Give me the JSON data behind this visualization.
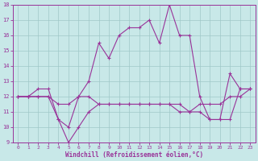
{
  "xlabel": "Windchill (Refroidissement éolien,°C)",
  "xlim": [
    -0.5,
    23.5
  ],
  "ylim": [
    9,
    18
  ],
  "xticks": [
    0,
    1,
    2,
    3,
    4,
    5,
    6,
    7,
    8,
    9,
    10,
    11,
    12,
    13,
    14,
    15,
    16,
    17,
    18,
    19,
    20,
    21,
    22,
    23
  ],
  "yticks": [
    9,
    10,
    11,
    12,
    13,
    14,
    15,
    16,
    17,
    18
  ],
  "bg_color": "#c8e8e8",
  "line_color": "#993399",
  "line1_x": [
    0,
    1,
    2,
    3,
    4,
    5,
    6,
    7,
    8,
    9,
    10,
    11,
    12,
    13,
    14,
    15,
    16,
    17,
    18,
    19,
    20,
    21,
    22,
    23
  ],
  "line1_y": [
    12,
    12,
    12.5,
    12.5,
    10.5,
    10,
    12,
    13,
    15.5,
    14.5,
    16,
    16.5,
    16.5,
    17,
    15.5,
    18,
    16,
    16,
    12,
    10.5,
    10.5,
    13.5,
    12.5,
    12.5
  ],
  "line2_x": [
    0,
    1,
    2,
    3,
    4,
    5,
    6,
    7,
    8,
    9,
    10,
    11,
    12,
    13,
    14,
    15,
    16,
    17,
    18,
    19,
    20,
    21,
    22,
    23
  ],
  "line2_y": [
    12,
    12,
    12,
    12,
    10.5,
    9,
    10,
    11,
    11.5,
    11.5,
    11.5,
    11.5,
    11.5,
    11.5,
    11.5,
    11.5,
    11,
    11,
    11,
    10.5,
    10.5,
    10.5,
    12.5,
    12.5
  ],
  "line3_x": [
    0,
    1,
    2,
    3,
    4,
    5,
    6,
    7,
    8,
    9,
    10,
    11,
    12,
    13,
    14,
    15,
    16,
    17,
    18,
    19,
    20,
    21,
    22,
    23
  ],
  "line3_y": [
    12,
    12,
    12,
    12,
    11.5,
    11.5,
    12,
    12,
    11.5,
    11.5,
    11.5,
    11.5,
    11.5,
    11.5,
    11.5,
    11.5,
    11.5,
    11,
    11.5,
    11.5,
    11.5,
    12,
    12,
    12.5
  ]
}
